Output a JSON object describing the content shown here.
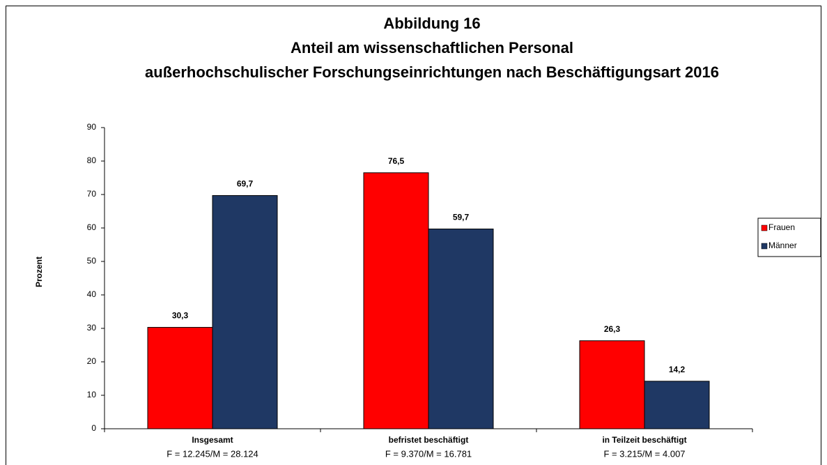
{
  "chart_data": {
    "type": "bar",
    "title": [
      "Abbildung 16",
      "Anteil am wissenschaftlichen Personal",
      "außerhochschulischer Forschungseinrichtungen nach Beschäftigungsart 2016"
    ],
    "y_label": "Prozent",
    "categories": [
      "Insgesamt",
      "befristet beschäftigt",
      "in Teilzeit beschäftigt"
    ],
    "category_notes": [
      "F = 12.245/M = 28.124",
      "F = 9.370/M = 16.781",
      "F = 3.215/M = 4.007"
    ],
    "series": [
      {
        "name": "Frauen",
        "color": "#ff0000",
        "values": [
          30.3,
          76.5,
          26.3
        ],
        "value_labels": [
          "30,3",
          "76,5",
          "26,3"
        ]
      },
      {
        "name": "Männer",
        "color": "#1f3864",
        "values": [
          69.7,
          59.7,
          14.2
        ],
        "value_labels": [
          "69,7",
          "59,7",
          "14,2"
        ]
      }
    ],
    "ylim": [
      0,
      90
    ],
    "yticks": [
      0,
      10,
      20,
      30,
      40,
      50,
      60,
      70,
      80,
      90
    ],
    "legend": "right"
  }
}
